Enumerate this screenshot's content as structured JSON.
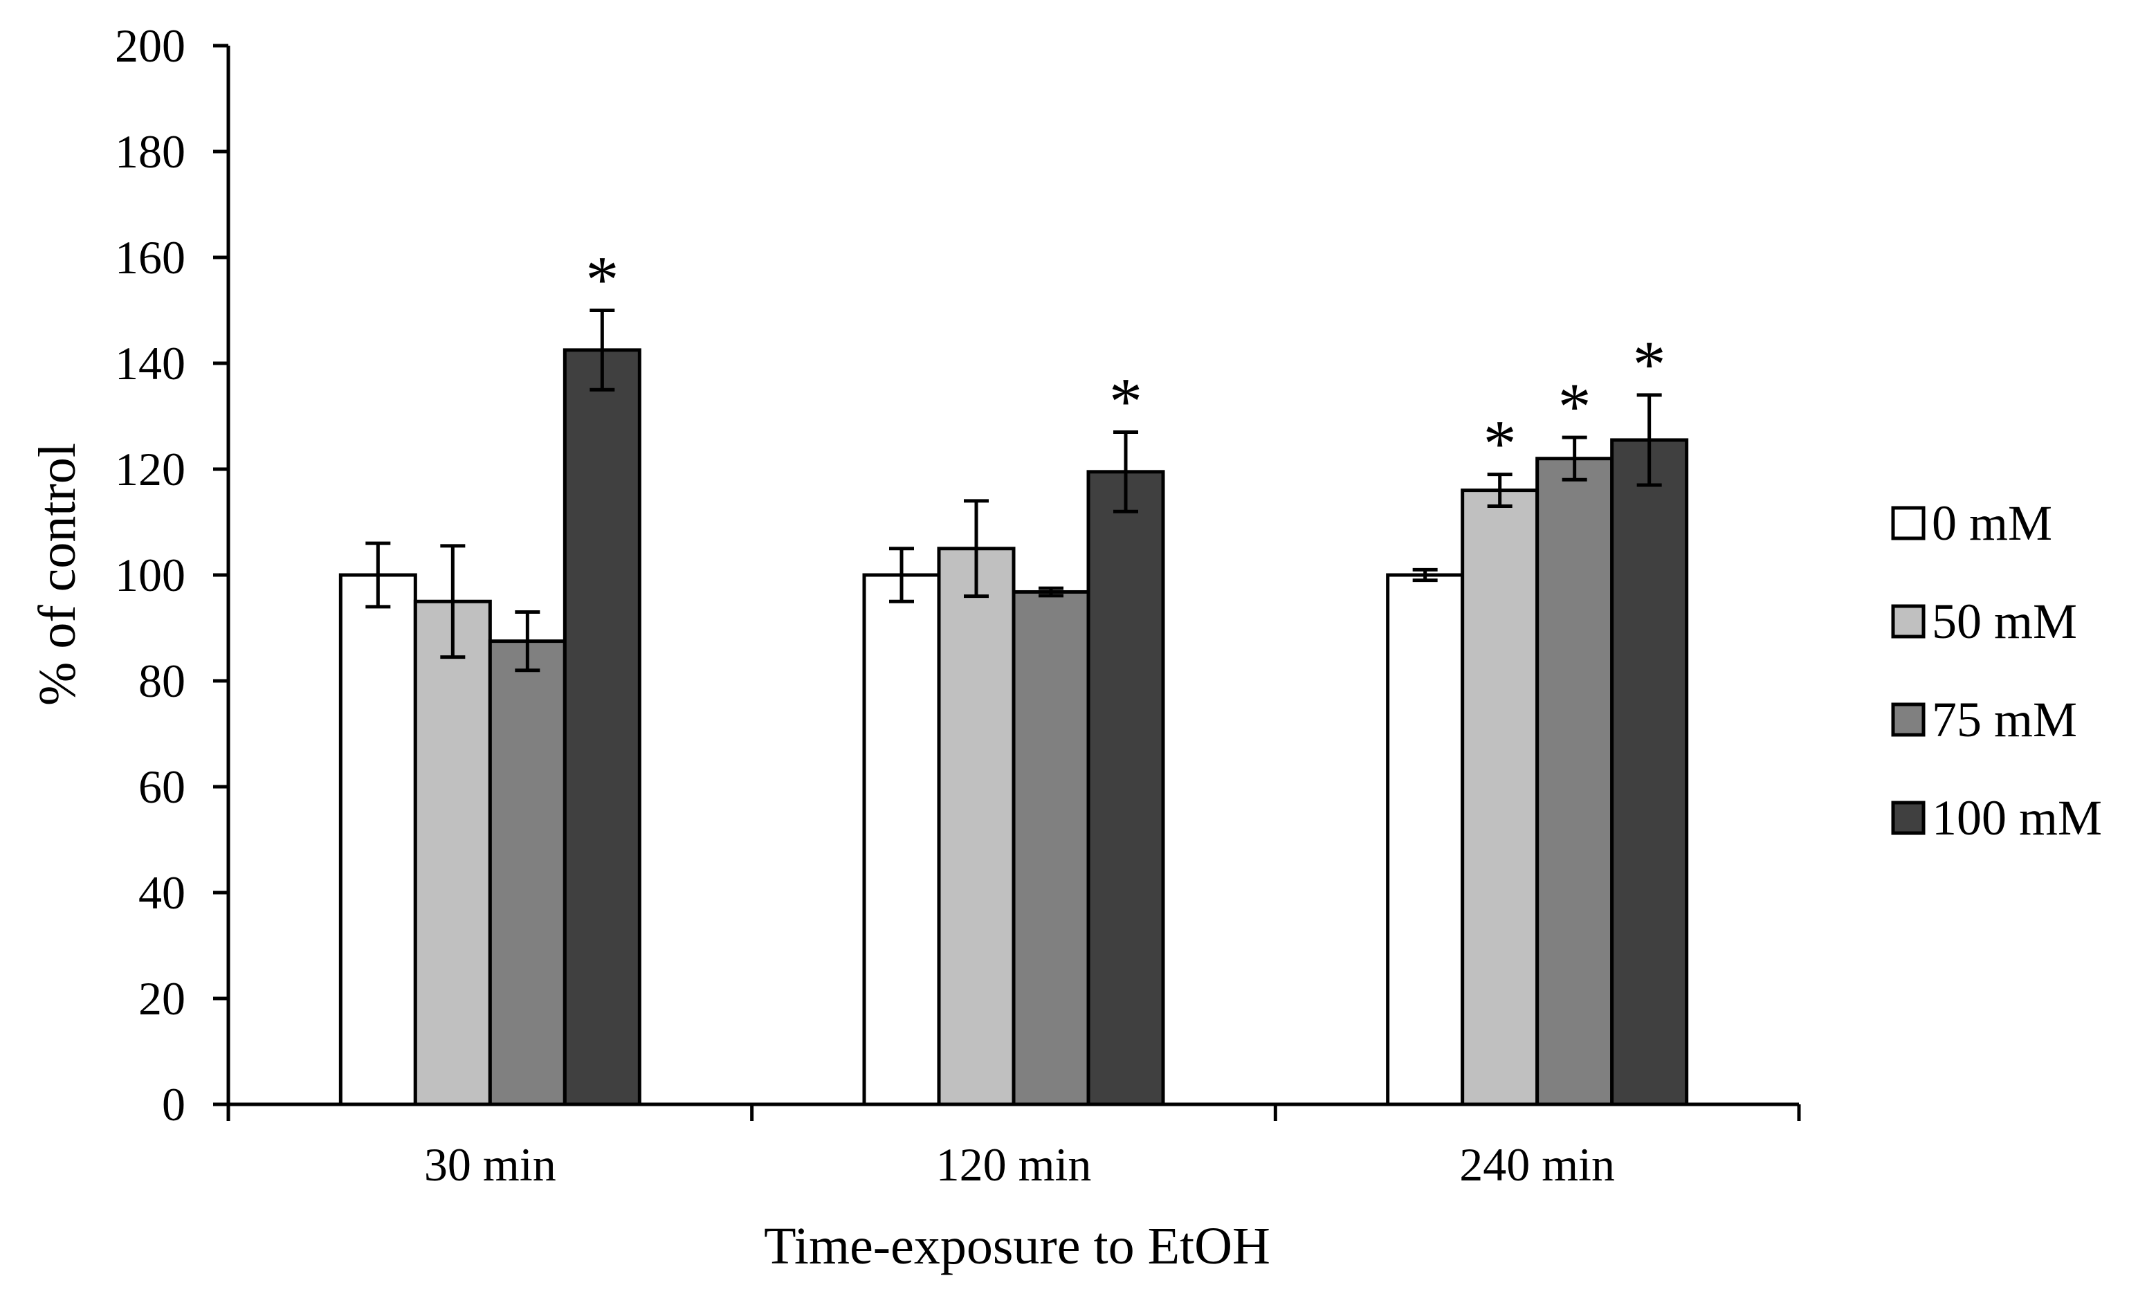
{
  "chart_data": {
    "type": "bar",
    "title": "",
    "xlabel": "Time-exposure to EtOH",
    "ylabel": "% of control",
    "ylim": [
      0,
      200
    ],
    "yticks": [
      0,
      20,
      40,
      60,
      80,
      100,
      120,
      140,
      160,
      180,
      200
    ],
    "grid": false,
    "legend_position": "right",
    "categories": [
      "30 min",
      "120 min",
      "240 min"
    ],
    "series": [
      {
        "name": "0 mM",
        "color": "#ffffff",
        "values": [
          100,
          100,
          100
        ],
        "errors": [
          6,
          5,
          1
        ],
        "significant": [
          false,
          false,
          false
        ]
      },
      {
        "name": "50 mM",
        "color": "#c0c0c0",
        "values": [
          95,
          105,
          116
        ],
        "errors": [
          10.5,
          9,
          3
        ],
        "significant": [
          false,
          false,
          true
        ]
      },
      {
        "name": "75 mM",
        "color": "#808080",
        "values": [
          87.5,
          96.8,
          122
        ],
        "errors": [
          5.5,
          0.7,
          4
        ],
        "significant": [
          false,
          false,
          true
        ]
      },
      {
        "name": "100 mM",
        "color": "#404040",
        "values": [
          142.5,
          119.5,
          125.5
        ],
        "errors": [
          7.5,
          7.5,
          8.5
        ],
        "significant": [
          true,
          true,
          true
        ]
      }
    ],
    "significance_marker": "*"
  }
}
